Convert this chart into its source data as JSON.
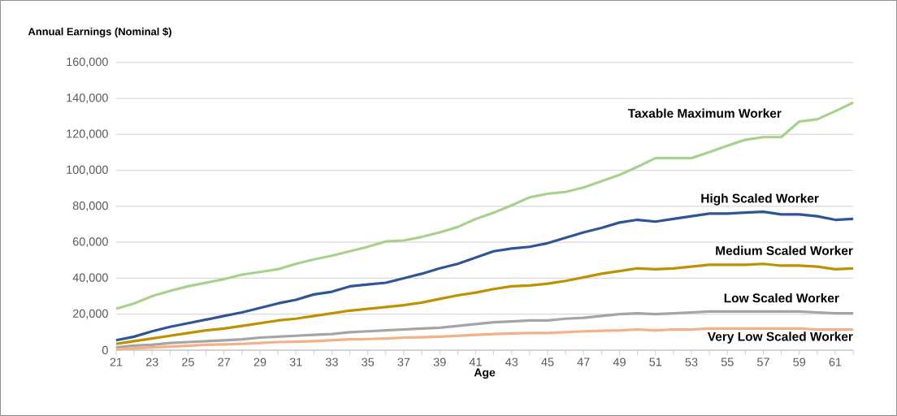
{
  "chart_data": {
    "type": "line",
    "ylabel": "Annual Earnings (Nominal $)",
    "xlabel": "Age",
    "x": [
      21,
      22,
      23,
      24,
      25,
      26,
      27,
      28,
      29,
      30,
      31,
      32,
      33,
      34,
      35,
      36,
      37,
      38,
      39,
      40,
      41,
      42,
      43,
      44,
      45,
      46,
      47,
      48,
      49,
      50,
      51,
      52,
      53,
      54,
      55,
      56,
      57,
      58,
      59,
      60,
      61,
      62
    ],
    "series": [
      {
        "name": "Taxable Maximum Worker",
        "color": "#a9d18e",
        "values": [
          23000,
          26000,
          30000,
          33000,
          35500,
          37500,
          39500,
          42000,
          43500,
          45000,
          48000,
          50500,
          52500,
          55000,
          57500,
          60500,
          61000,
          63000,
          65500,
          68500,
          73000,
          76500,
          80500,
          85000,
          87000,
          88000,
          90500,
          94000,
          97500,
          102000,
          106800,
          106800,
          106800,
          110100,
          113700,
          117000,
          118500,
          118500,
          127200,
          128400,
          132900,
          137700
        ]
      },
      {
        "name": "High Scaled Worker",
        "color": "#2f5597",
        "values": [
          5500,
          7500,
          10500,
          13000,
          15000,
          17000,
          19000,
          21000,
          23500,
          26000,
          28000,
          31000,
          32500,
          35500,
          36500,
          37500,
          40000,
          42500,
          45500,
          48000,
          51500,
          55000,
          56500,
          57500,
          59500,
          62500,
          65500,
          68000,
          71000,
          72500,
          71500,
          73000,
          74500,
          76000,
          76000,
          76500,
          77000,
          75500,
          75500,
          74500,
          72500,
          73000
        ]
      },
      {
        "name": "Medium Scaled Worker",
        "color": "#bf9000",
        "values": [
          3500,
          5000,
          6500,
          8000,
          9500,
          11000,
          12000,
          13500,
          15000,
          16500,
          17500,
          19000,
          20500,
          22000,
          23000,
          24000,
          25000,
          26500,
          28500,
          30500,
          32000,
          34000,
          35500,
          36000,
          37000,
          38500,
          40500,
          42500,
          44000,
          45500,
          45000,
          45500,
          46500,
          47500,
          47500,
          47500,
          48000,
          47000,
          47000,
          46500,
          45000,
          45500
        ]
      },
      {
        "name": "Low Scaled Worker",
        "color": "#a5a5a5",
        "values": [
          1500,
          2500,
          3000,
          4000,
          4500,
          5000,
          5500,
          6000,
          7000,
          7500,
          8000,
          8500,
          9000,
          10000,
          10500,
          11000,
          11500,
          12000,
          12500,
          13500,
          14500,
          15500,
          16000,
          16500,
          16500,
          17500,
          18000,
          19000,
          20000,
          20500,
          20000,
          20500,
          21000,
          21500,
          21500,
          21500,
          21500,
          21500,
          21500,
          21000,
          20500,
          20500
        ]
      },
      {
        "name": "Very Low Scaled Worker",
        "color": "#f4b183",
        "values": [
          500,
          1000,
          1500,
          2000,
          2500,
          3000,
          3200,
          3500,
          4000,
          4500,
          4700,
          5000,
          5500,
          6000,
          6200,
          6500,
          7000,
          7200,
          7500,
          8000,
          8500,
          9000,
          9300,
          9500,
          9500,
          10000,
          10500,
          10800,
          11000,
          11500,
          11000,
          11500,
          11500,
          12000,
          12000,
          12000,
          12000,
          12000,
          12000,
          11500,
          11500,
          11500
        ]
      }
    ],
    "xlim": [
      21,
      62
    ],
    "xticks": [
      21,
      {
        "value": 22,
        "label": null
      },
      23,
      {
        "value": 24,
        "label": null
      },
      25,
      {
        "value": 26,
        "label": null
      },
      27,
      {
        "value": 28,
        "label": null
      },
      29,
      {
        "value": 30,
        "label": null
      },
      31,
      {
        "value": 32,
        "label": null
      },
      33,
      {
        "value": 34,
        "label": null
      },
      35,
      {
        "value": 36,
        "label": null
      },
      37,
      {
        "value": 38,
        "label": null
      },
      39,
      {
        "value": 40,
        "label": null
      },
      41,
      {
        "value": 42,
        "label": null
      },
      43,
      {
        "value": 44,
        "label": null
      },
      45,
      {
        "value": 46,
        "label": null
      },
      47,
      {
        "value": 48,
        "label": null
      },
      49,
      {
        "value": 50,
        "label": null
      },
      51,
      {
        "value": 52,
        "label": null
      },
      53,
      {
        "value": 54,
        "label": null
      },
      55,
      {
        "value": 56,
        "label": null
      },
      57,
      {
        "value": 58,
        "label": null
      },
      59,
      {
        "value": 60,
        "label": null
      },
      61,
      {
        "value": 62,
        "label": null
      }
    ],
    "ylim": [
      0,
      160000
    ],
    "yticks": [
      0,
      {
        "value": 20000,
        "label": "20,000"
      },
      {
        "value": 40000,
        "label": "40,000"
      },
      {
        "value": 60000,
        "label": "60,000"
      },
      {
        "value": 80000,
        "label": "80,000"
      },
      {
        "value": 100000,
        "label": "100,000"
      },
      {
        "value": 120000,
        "label": "120,000"
      },
      {
        "value": 140000,
        "label": "140,000"
      },
      {
        "value": 160000,
        "label": "160,000"
      }
    ],
    "grid": "y"
  }
}
